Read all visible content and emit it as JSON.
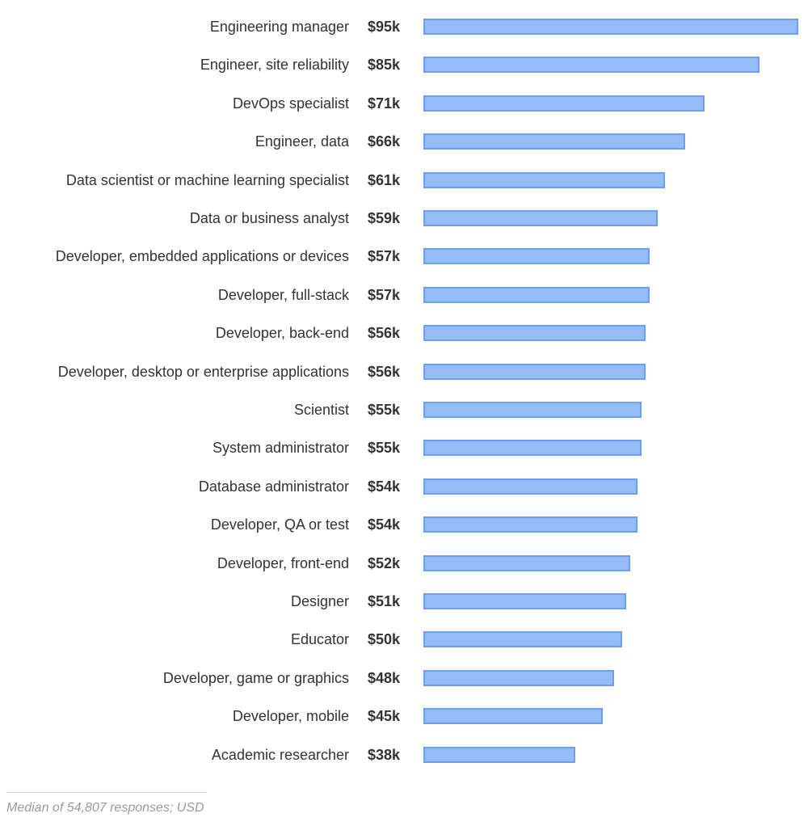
{
  "chart_data": {
    "type": "bar",
    "orientation": "horizontal",
    "categories": [
      "Engineering manager",
      "Engineer, site reliability",
      "DevOps specialist",
      "Engineer, data",
      "Data scientist or machine learning specialist",
      "Data or business analyst",
      "Developer, embedded applications or devices",
      "Developer, full-stack",
      "Developer, back-end",
      "Developer, desktop or enterprise applications",
      "Scientist",
      "System administrator",
      "Database administrator",
      "Developer, QA or test",
      "Developer, front-end",
      "Designer",
      "Educator",
      "Developer, game or graphics",
      "Developer, mobile",
      "Academic researcher"
    ],
    "values": [
      95,
      85,
      71,
      66,
      61,
      59,
      57,
      57,
      56,
      56,
      55,
      55,
      54,
      54,
      52,
      51,
      50,
      48,
      45,
      38
    ],
    "data_labels": [
      "$95k",
      "$85k",
      "$71k",
      "$66k",
      "$61k",
      "$59k",
      "$57k",
      "$57k",
      "$56k",
      "$56k",
      "$55k",
      "$55k",
      "$54k",
      "$54k",
      "$52k",
      "$51k",
      "$50k",
      "$48k",
      "$45k",
      "$38k"
    ],
    "xlim": [
      0,
      95
    ],
    "grid": false,
    "bar_color": "#94bdf5",
    "bar_border_color": "#6c9fef"
  },
  "footnote": "Median of 54,807 responses; USD"
}
